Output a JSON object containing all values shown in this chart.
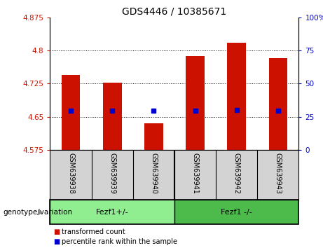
{
  "title": "GDS4446 / 10385671",
  "categories": [
    "GSM639938",
    "GSM639939",
    "GSM639940",
    "GSM639941",
    "GSM639942",
    "GSM639943"
  ],
  "bar_values": [
    4.745,
    4.728,
    4.635,
    4.788,
    4.818,
    4.782
  ],
  "blue_dot_values": [
    4.664,
    4.664,
    4.664,
    4.664,
    4.666,
    4.664
  ],
  "bar_color": "#cc1100",
  "dot_color": "#0000cc",
  "y_min": 4.575,
  "y_max": 4.875,
  "y_ticks_left": [
    4.575,
    4.65,
    4.725,
    4.8,
    4.875
  ],
  "y_ticks_right": [
    0,
    25,
    50,
    75,
    100
  ],
  "y_ticks_right_labels": [
    "0",
    "25",
    "50",
    "75",
    "100%"
  ],
  "group1_label": "Fezf1+/-",
  "group2_label": "Fezf1 -/-",
  "group_label_prefix": "genotype/variation",
  "legend_red_label": "transformed count",
  "legend_blue_label": "percentile rank within the sample",
  "group1_bg": "#90ee90",
  "group2_bg": "#4cbb4c",
  "tick_area_bg": "#d3d3d3",
  "plot_bg": "#ffffff",
  "title_fontsize": 10,
  "tick_fontsize": 7.5,
  "label_fontsize": 7.5
}
